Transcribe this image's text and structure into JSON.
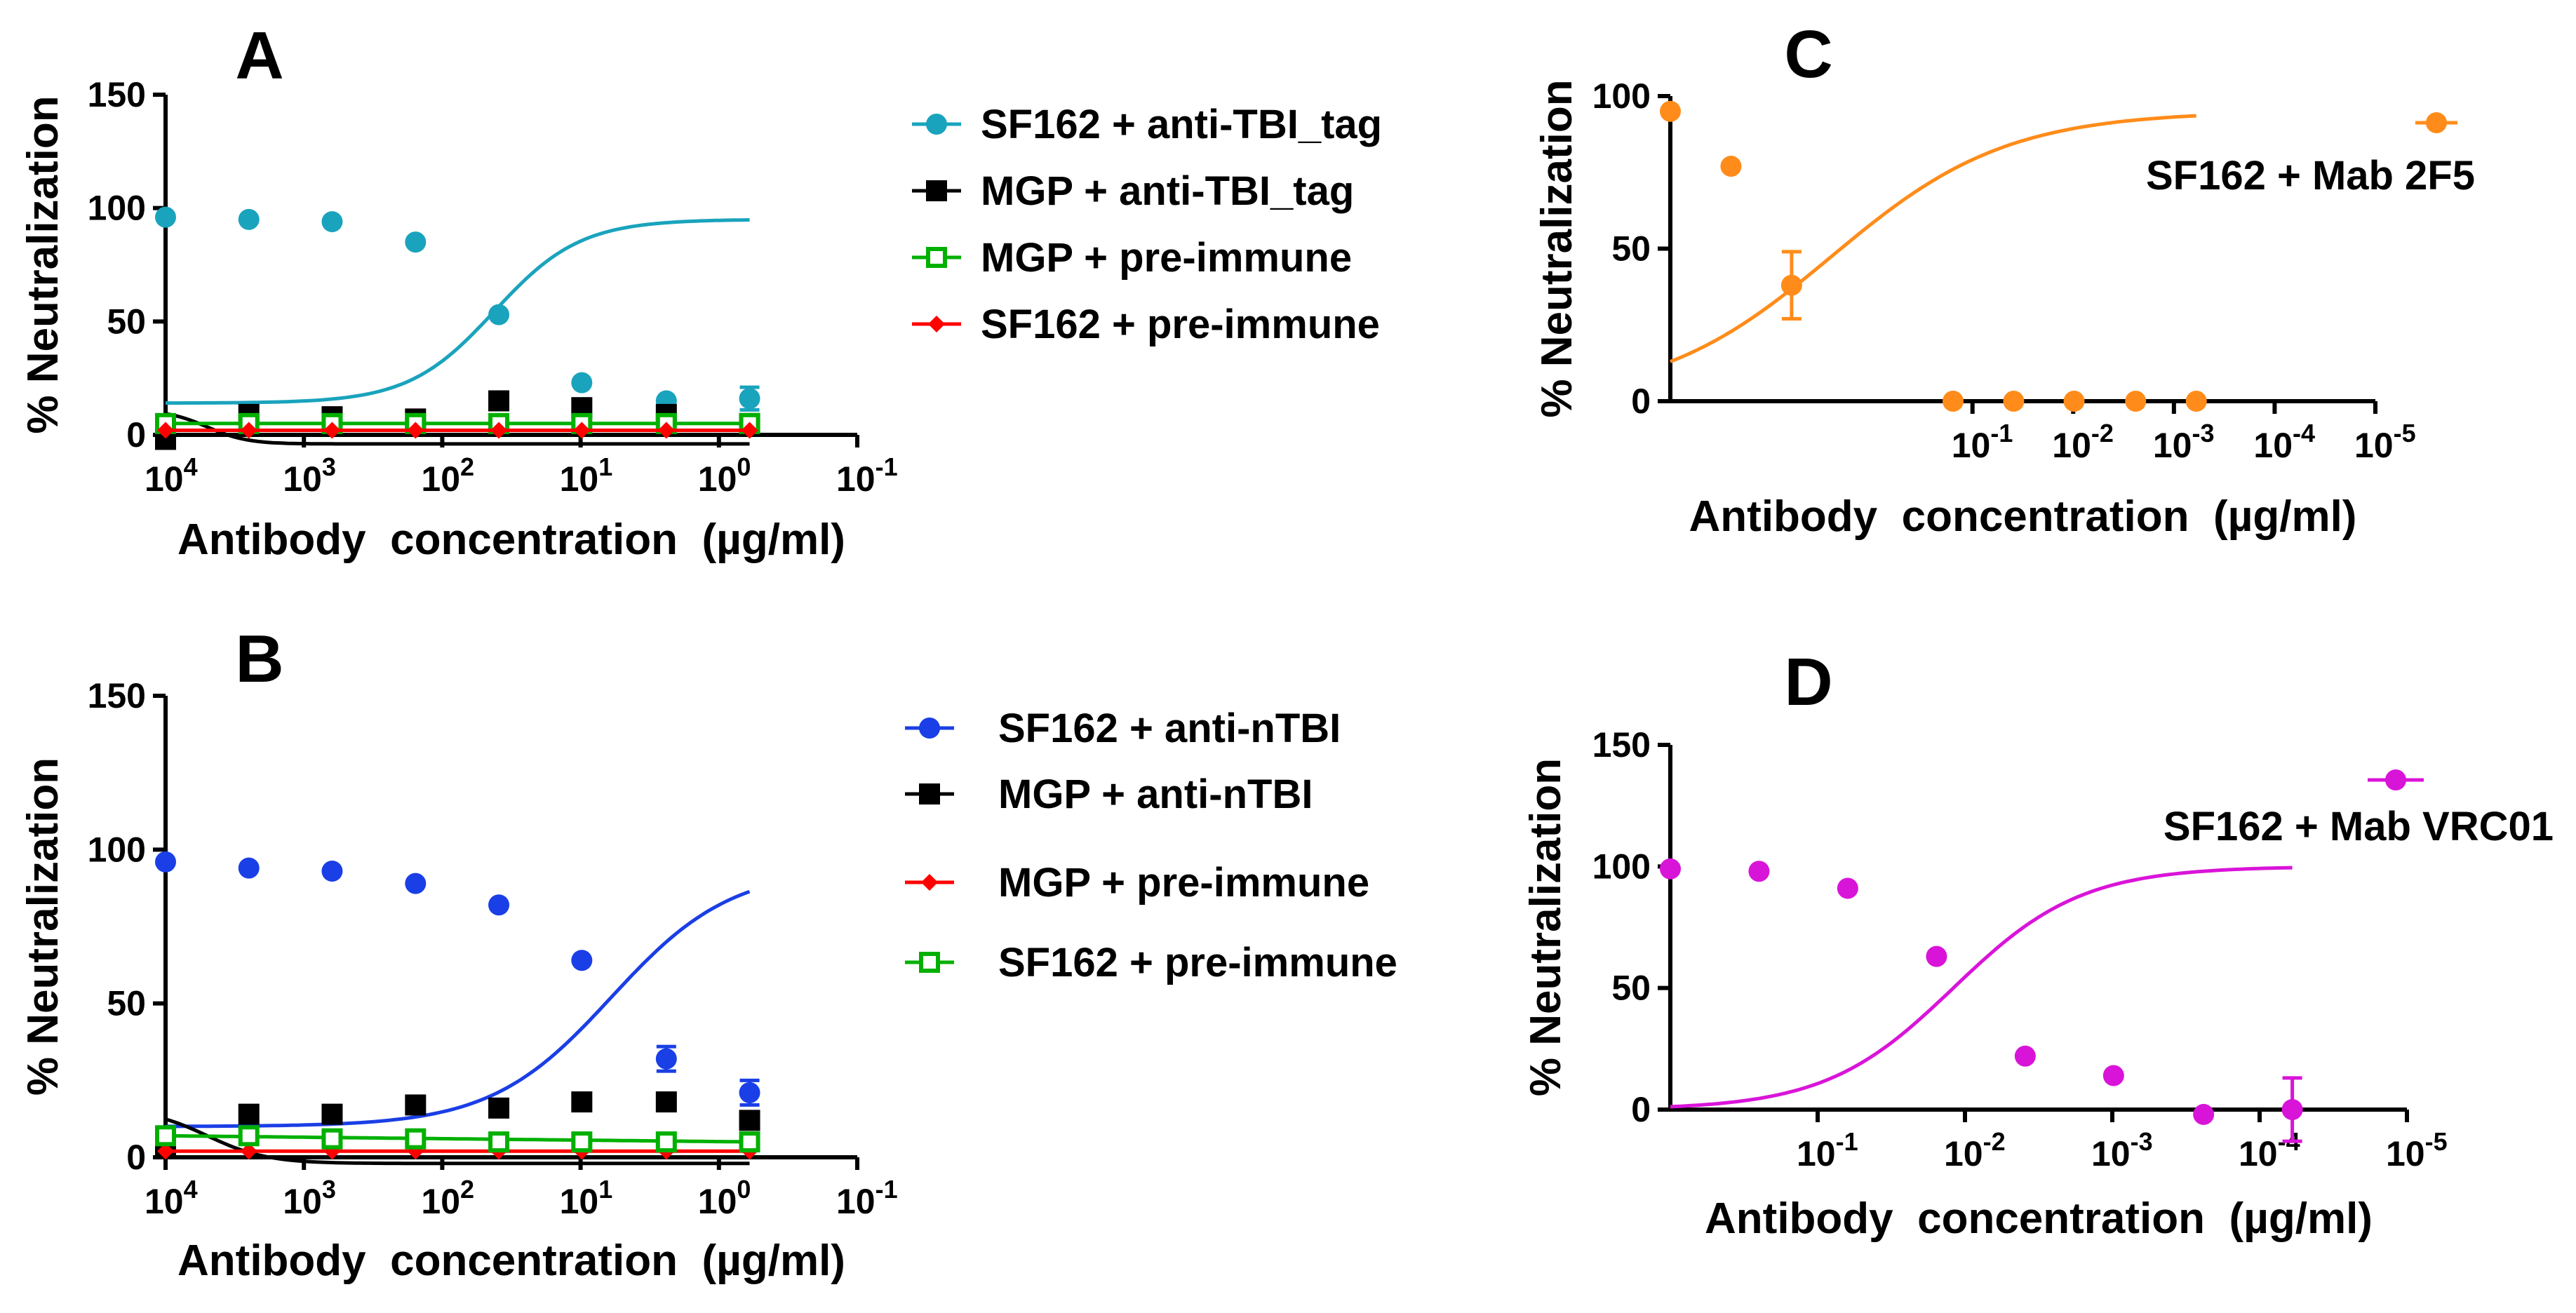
{
  "figure": {
    "x_axis_label": "Antibody  concentration  (µg/ml)",
    "y_axis_label": "% Neutralization"
  },
  "chart_data": [
    {
      "id": "A",
      "type": "line",
      "panel_label": "A",
      "xlabel": "Antibody  concentration  (µg/ml)",
      "ylabel": "% Neutralization",
      "x_scale": "log",
      "x_reversed": true,
      "xlim": [
        10000,
        0.1
      ],
      "ylim": [
        0,
        150
      ],
      "yticks": [
        0,
        50,
        100,
        150
      ],
      "xticks": [
        {
          "value": 10000,
          "base": "10",
          "exp": "4"
        },
        {
          "value": 1000,
          "base": "10",
          "exp": "3"
        },
        {
          "value": 100,
          "base": "10",
          "exp": "2"
        },
        {
          "value": 10,
          "base": "10",
          "exp": "1"
        },
        {
          "value": 1,
          "base": "10",
          "exp": "0"
        },
        {
          "value": 0.1,
          "base": "10",
          "exp": "-1"
        }
      ],
      "x": [
        10000,
        2500,
        625,
        156,
        39,
        9.8,
        2.4,
        0.6
      ],
      "series": [
        {
          "name": "SF162 + anti-TBI_tag",
          "color": "#1aa3bd",
          "marker": "circle",
          "values": [
            96,
            95,
            94,
            85,
            53,
            23,
            15,
            16
          ],
          "error_high": [
            null,
            null,
            null,
            null,
            null,
            null,
            null,
            21
          ],
          "error_low": [
            null,
            null,
            null,
            null,
            null,
            null,
            null,
            11
          ],
          "fit": {
            "top": 95,
            "bottom": 14,
            "ic50": 42,
            "hill": 1.4
          }
        },
        {
          "name": "MGP + anti-TBI_tag",
          "color": "#000000",
          "marker": "square",
          "values": [
            -2,
            9,
            8,
            7,
            15,
            12,
            9,
            5
          ],
          "fit": {
            "top": 11,
            "bottom": -4,
            "ic50": 5000,
            "hill": -3
          }
        },
        {
          "name": "MGP + pre-immune",
          "color": "#00b000",
          "marker": "open-square",
          "values": [
            5,
            5,
            5,
            5,
            5,
            5,
            5,
            5
          ],
          "fit": {
            "flat": 5
          }
        },
        {
          "name": "SF162 + pre-immune",
          "color": "#ff0000",
          "marker": "diamond",
          "values": [
            2,
            2,
            2,
            2,
            2,
            2,
            2,
            2
          ],
          "fit": {
            "flat": 2
          }
        }
      ],
      "legend": {
        "placement": "right"
      }
    },
    {
      "id": "B",
      "type": "line",
      "panel_label": "B",
      "xlabel": "Antibody  concentration  (µg/ml)",
      "ylabel": "% Neutralization",
      "x_scale": "log",
      "x_reversed": true,
      "xlim": [
        10000,
        0.1
      ],
      "ylim": [
        0,
        150
      ],
      "yticks": [
        0,
        50,
        100,
        150
      ],
      "xticks": [
        {
          "value": 10000,
          "base": "10",
          "exp": "4"
        },
        {
          "value": 1000,
          "base": "10",
          "exp": "3"
        },
        {
          "value": 100,
          "base": "10",
          "exp": "2"
        },
        {
          "value": 10,
          "base": "10",
          "exp": "1"
        },
        {
          "value": 1,
          "base": "10",
          "exp": "0"
        },
        {
          "value": 0.1,
          "base": "10",
          "exp": "-1"
        }
      ],
      "x": [
        10000,
        2500,
        625,
        156,
        39,
        9.8,
        2.4,
        0.6
      ],
      "series": [
        {
          "name": "SF162 + anti-nTBI",
          "color": "#1a3fe6",
          "marker": "circle",
          "values": [
            96,
            94,
            93,
            89,
            82,
            64,
            32,
            21
          ],
          "error_high": [
            null,
            null,
            null,
            null,
            null,
            null,
            36,
            25
          ],
          "error_low": [
            null,
            null,
            null,
            null,
            null,
            null,
            28,
            17
          ],
          "fit": {
            "top": 94,
            "bottom": 10,
            "ic50": 6,
            "hill": 1
          }
        },
        {
          "name": "MGP + anti-nTBI",
          "color": "#000000",
          "marker": "square",
          "values": [
            4,
            14,
            14,
            17,
            16,
            18,
            18,
            12
          ],
          "fit": {
            "top": 16,
            "bottom": -2,
            "ic50": 5000,
            "hill": -2
          }
        },
        {
          "name": "MGP + pre-immune",
          "color": "#ff0000",
          "marker": "diamond",
          "values": [
            2,
            2,
            2,
            2,
            2,
            2,
            2,
            2
          ],
          "fit": {
            "flat": 2
          }
        },
        {
          "name": "SF162 + pre-immune",
          "color": "#00b000",
          "marker": "open-square",
          "values": [
            7,
            7,
            6,
            6,
            5,
            5,
            5,
            5
          ],
          "fit": {
            "line": [
              7,
              5
            ]
          }
        }
      ],
      "legend": {
        "placement": "right"
      }
    },
    {
      "id": "C",
      "type": "line",
      "panel_label": "C",
      "xlabel": "Antibody  concentration  (µg/ml)",
      "ylabel": "% Neutralization",
      "x_scale": "log",
      "x_reversed": true,
      "xlim": [
        100,
        1e-05
      ],
      "ylim": [
        0,
        100
      ],
      "yticks": [
        0,
        50,
        100
      ],
      "xticks": [
        {
          "value": 0.1,
          "base": "10",
          "exp": "-1"
        },
        {
          "value": 0.01,
          "base": "10",
          "exp": "-2"
        },
        {
          "value": 0.001,
          "base": "10",
          "exp": "-3"
        },
        {
          "value": 0.0001,
          "base": "10",
          "exp": "-4"
        },
        {
          "value": 1e-05,
          "base": "10",
          "exp": "-5"
        }
      ],
      "x": [
        100,
        25,
        6.25,
        0.156,
        0.039,
        0.0098,
        0.0024,
        0.0006
      ],
      "series": [
        {
          "name": "SF162 + Mab 2F5",
          "color": "#ff8c1a",
          "marker": "circle",
          "values": [
            95,
            77,
            38,
            0,
            0,
            0,
            0,
            0
          ],
          "error_high": [
            null,
            null,
            49,
            null,
            null,
            null,
            null,
            null
          ],
          "error_low": [
            null,
            null,
            27,
            null,
            null,
            null,
            null,
            null
          ],
          "fit": {
            "top": 95,
            "bottom": 0,
            "ic50": 2.5,
            "hill": 0.5
          }
        }
      ],
      "legend": {
        "placement": "top-right"
      }
    },
    {
      "id": "D",
      "type": "line",
      "panel_label": "D",
      "xlabel": "Antibody  concentration  (µg/ml)",
      "ylabel": "% Neutralization",
      "x_scale": "log",
      "x_reversed": true,
      "xlim": [
        1,
        1e-05
      ],
      "ylim": [
        0,
        150
      ],
      "yticks": [
        0,
        50,
        100,
        150
      ],
      "xticks": [
        {
          "value": 0.1,
          "base": "10",
          "exp": "-1"
        },
        {
          "value": 0.01,
          "base": "10",
          "exp": "-2"
        },
        {
          "value": 0.001,
          "base": "10",
          "exp": "-3"
        },
        {
          "value": 0.0001,
          "base": "10",
          "exp": "-4"
        },
        {
          "value": 1e-05,
          "base": "10",
          "exp": "-5"
        }
      ],
      "x": [
        1,
        0.25,
        0.0625,
        0.0156,
        0.0039,
        0.00098,
        0.00024,
        6e-05
      ],
      "series": [
        {
          "name": "SF162 + Mab VRC01",
          "color": "#d914d9",
          "marker": "circle",
          "values": [
            99,
            98,
            91,
            63,
            22,
            14,
            -2,
            0
          ],
          "error_high": [
            null,
            null,
            null,
            null,
            null,
            null,
            null,
            13
          ],
          "error_low": [
            null,
            null,
            null,
            null,
            null,
            null,
            null,
            -13
          ],
          "fit": {
            "top": 100,
            "bottom": 0,
            "ic50": 0.012,
            "hill": 1
          }
        }
      ],
      "legend": {
        "placement": "top-right"
      }
    }
  ]
}
